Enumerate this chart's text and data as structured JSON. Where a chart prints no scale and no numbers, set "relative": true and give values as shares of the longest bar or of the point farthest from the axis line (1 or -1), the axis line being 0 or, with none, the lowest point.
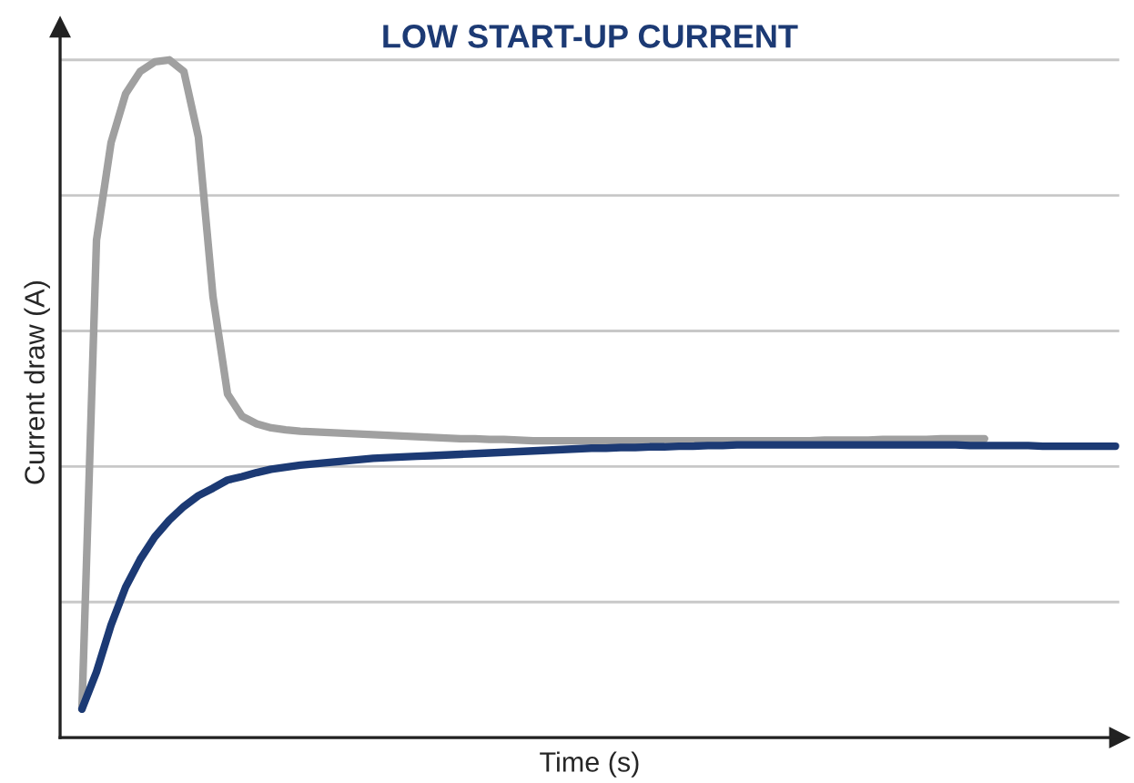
{
  "chart_data": {
    "type": "line",
    "title": "LOW START-UP CURRENT",
    "xlabel": "Time (s)",
    "ylabel": "Current draw (A)",
    "relative": true,
    "grid": "y",
    "line_style": "solid",
    "marker": "none",
    "categories": [
      null,
      null,
      null,
      null,
      null,
      null,
      null,
      null,
      null,
      null,
      null,
      null,
      null,
      null,
      null,
      null,
      null,
      null,
      null,
      null,
      null,
      null,
      null,
      null,
      null,
      null,
      null,
      null,
      null,
      null,
      null,
      null,
      null,
      null,
      null,
      null,
      null,
      null,
      null,
      null,
      null,
      null,
      null,
      null,
      null,
      null,
      null,
      null,
      null,
      null,
      null,
      null,
      null,
      null,
      null,
      null,
      null,
      null,
      null,
      null,
      null,
      null,
      null,
      null,
      null,
      null,
      null,
      null,
      null,
      null,
      null,
      null
    ],
    "series": [
      {
        "color": "#a0a0a0",
        "values": [
          0.042,
          0.734,
          0.878,
          0.95,
          0.983,
          0.997,
          1.0,
          0.983,
          0.886,
          0.651,
          0.507,
          0.474,
          0.463,
          0.457,
          0.454,
          0.452,
          0.451,
          0.45,
          0.449,
          0.448,
          0.447,
          0.446,
          0.445,
          0.444,
          0.443,
          0.442,
          0.441,
          0.441,
          0.44,
          0.44,
          0.439,
          0.438,
          0.438,
          0.438,
          0.438,
          0.438,
          0.438,
          0.438,
          0.438,
          0.438,
          0.438,
          0.438,
          0.438,
          0.438,
          0.438,
          0.438,
          0.438,
          0.438,
          0.438,
          0.438,
          0.438,
          0.439,
          0.439,
          0.439,
          0.439,
          0.44,
          0.44,
          0.44,
          0.44,
          0.441,
          0.441,
          0.441,
          0.441,
          null,
          null,
          null,
          null,
          null,
          null,
          null,
          null,
          null
        ]
      },
      {
        "color": "#1c3a74",
        "values": [
          0.042,
          0.097,
          0.166,
          0.222,
          0.263,
          0.296,
          0.321,
          0.341,
          0.357,
          0.368,
          0.38,
          0.385,
          0.391,
          0.396,
          0.399,
          0.402,
          0.404,
          0.406,
          0.408,
          0.41,
          0.412,
          0.413,
          0.414,
          0.415,
          0.416,
          0.417,
          0.418,
          0.419,
          0.42,
          0.421,
          0.422,
          0.423,
          0.424,
          0.425,
          0.426,
          0.427,
          0.427,
          0.428,
          0.428,
          0.429,
          0.429,
          0.43,
          0.43,
          0.431,
          0.431,
          0.432,
          0.432,
          0.432,
          0.432,
          0.432,
          0.432,
          0.432,
          0.432,
          0.432,
          0.432,
          0.432,
          0.432,
          0.432,
          0.432,
          0.432,
          0.432,
          0.431,
          0.431,
          0.431,
          0.431,
          0.431,
          0.43,
          0.43,
          0.43,
          0.43,
          0.43,
          0.43
        ]
      }
    ]
  }
}
